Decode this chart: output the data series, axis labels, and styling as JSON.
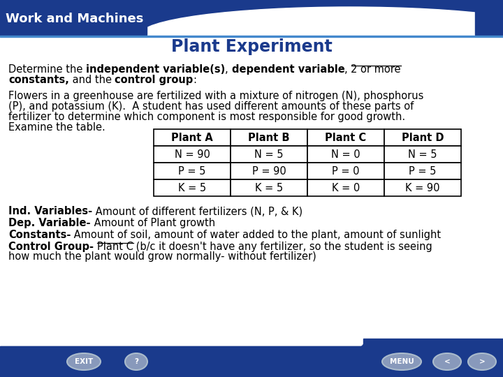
{
  "title": "Work and Machines",
  "slide_title": "Plant Experiment",
  "header_bg": "#1a3a8c",
  "header_text_color": "#ffffff",
  "slide_title_color": "#1a3a8c",
  "table_headers": [
    "Plant A",
    "Plant B",
    "Plant C",
    "Plant D"
  ],
  "table_rows": [
    [
      "N = 90",
      "N = 5",
      "N = 0",
      "N = 5"
    ],
    [
      "P = 5",
      "P = 90",
      "P = 0",
      "P = 5"
    ],
    [
      "K = 5",
      "K = 5",
      "K = 0",
      "K = 90"
    ]
  ],
  "figw": 7.2,
  "figh": 5.4,
  "dpi": 100
}
